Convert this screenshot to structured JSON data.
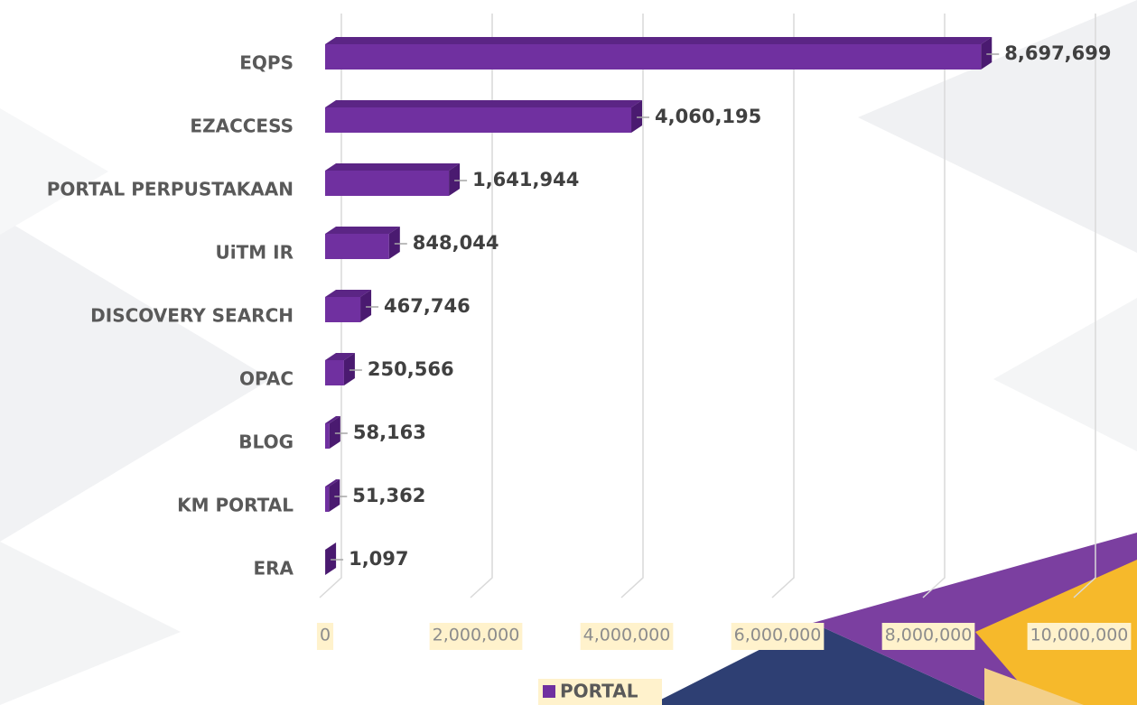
{
  "chart_data": {
    "type": "bar",
    "orientation": "horizontal",
    "categories": [
      "EQPS",
      "EZACCESS",
      "PORTAL PERPUSTAKAAN",
      "UiTM IR",
      "DISCOVERY SEARCH",
      "OPAC",
      "BLOG",
      "KM PORTAL",
      "ERA"
    ],
    "series": [
      {
        "name": "PORTAL",
        "color": "#7030a0",
        "values": [
          8697699,
          4060195,
          1641944,
          848044,
          467746,
          250566,
          58163,
          51362,
          1097
        ],
        "value_labels": [
          "8,697,699",
          "4,060,195",
          "1,641,944",
          "848,044",
          "467,746",
          "250,566",
          "58,163",
          "51,362",
          "1,097"
        ]
      }
    ],
    "xlim": [
      0,
      10000000
    ],
    "xticks": [
      0,
      {
        "value": 2000000,
        "label": "2,000,000"
      },
      {
        "value": 4000000,
        "label": "4,000,000"
      },
      {
        "value": 6000000,
        "label": "6,000,000"
      },
      {
        "value": 8000000,
        "label": "8,000,000"
      },
      {
        "value": 10000000,
        "label": "10,000,000"
      }
    ],
    "grid": true,
    "legend": "bottom"
  }
}
